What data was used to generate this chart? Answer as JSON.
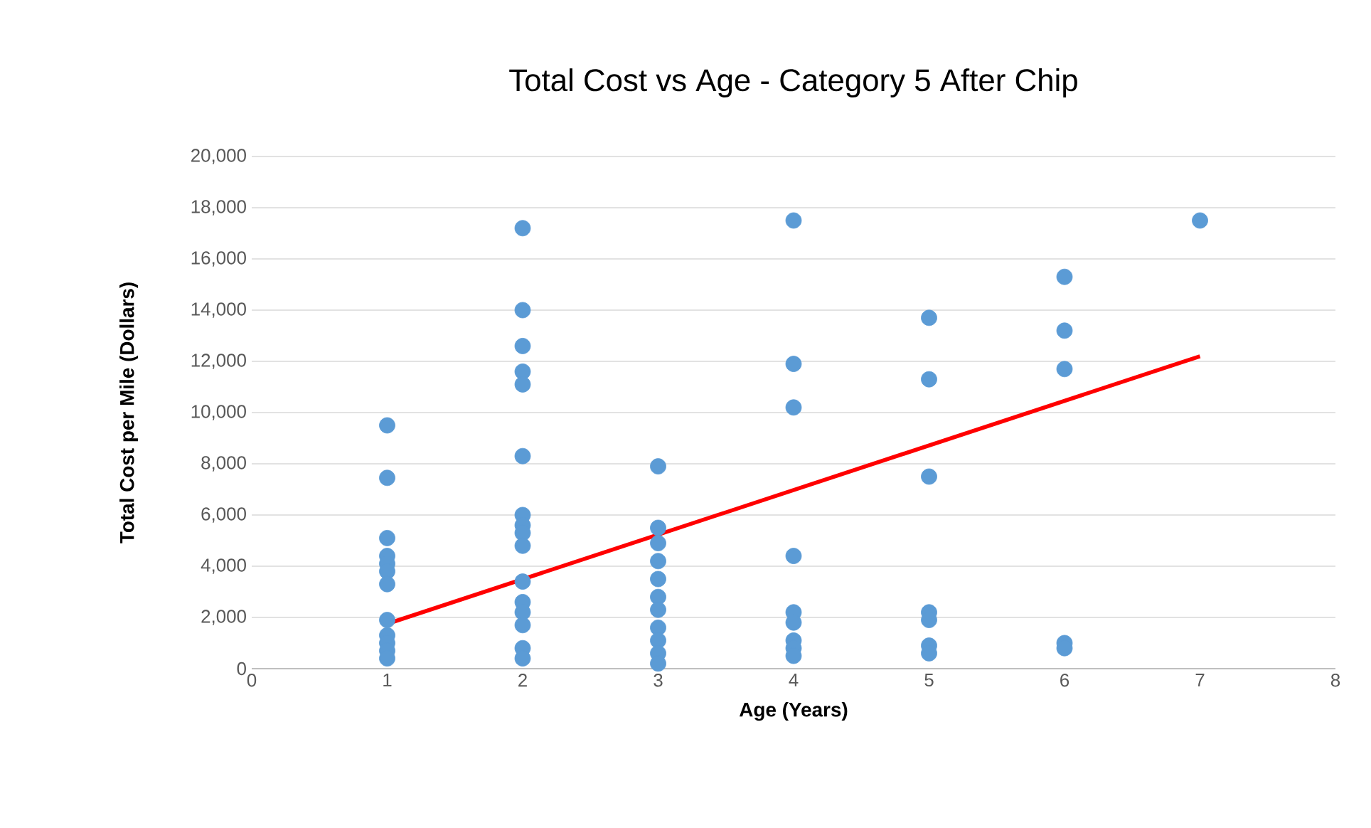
{
  "chart_data": {
    "type": "scatter",
    "title": "Total Cost vs Age - Category 5 After Chip",
    "xlabel": "Age (Years)",
    "ylabel": "Total Cost per Mile (Dollars)",
    "xlim": [
      0,
      8
    ],
    "xticks": [
      0,
      1,
      2,
      3,
      4,
      5,
      6,
      7,
      8
    ],
    "ylim": [
      0,
      20000
    ],
    "yticks": [
      {
        "value": 0,
        "label": "0"
      },
      {
        "value": 2000,
        "label": "2,000"
      },
      {
        "value": 4000,
        "label": "4,000"
      },
      {
        "value": 6000,
        "label": "6,000"
      },
      {
        "value": 8000,
        "label": "8,000"
      },
      {
        "value": 10000,
        "label": "10,000"
      },
      {
        "value": 12000,
        "label": "12,000"
      },
      {
        "value": 14000,
        "label": "14,000"
      },
      {
        "value": 16000,
        "label": "16,000"
      },
      {
        "value": 18000,
        "label": "18,000"
      },
      {
        "value": 20000,
        "label": "20,000"
      }
    ],
    "grid": "y",
    "marker": "circle",
    "series": [
      {
        "color": "#5b9bd5",
        "x": [
          1,
          1,
          1,
          1,
          1,
          1,
          1,
          1,
          1,
          1,
          1,
          1,
          2,
          2,
          2,
          2,
          2,
          2,
          2,
          2,
          2,
          2,
          2,
          2,
          2,
          2,
          2,
          2,
          3,
          3,
          3,
          3,
          3,
          3,
          3,
          3,
          3,
          3,
          3,
          4,
          4,
          4,
          4,
          4,
          4,
          4,
          4,
          4,
          5,
          5,
          5,
          5,
          5,
          5,
          5,
          6,
          6,
          6,
          6,
          6,
          7
        ],
        "values": [
          9500,
          7450,
          5100,
          4400,
          4100,
          3800,
          3300,
          1900,
          1300,
          1000,
          700,
          400,
          17200,
          14000,
          12600,
          11600,
          11100,
          8300,
          6000,
          5600,
          5300,
          4800,
          3400,
          2600,
          2200,
          1700,
          800,
          400,
          7900,
          5500,
          4900,
          4200,
          3500,
          2800,
          2300,
          1600,
          1100,
          600,
          200,
          17500,
          11900,
          10200,
          4400,
          2200,
          1800,
          1100,
          800,
          500,
          13700,
          11300,
          7500,
          2200,
          1900,
          900,
          600,
          15300,
          13200,
          11700,
          1000,
          800,
          17500
        ]
      },
      {
        "type": "line",
        "color": "#ff0000",
        "x": [
          1,
          7
        ],
        "values": [
          1750,
          12200
        ],
        "marker": "none",
        "line_style": "solid"
      }
    ]
  }
}
